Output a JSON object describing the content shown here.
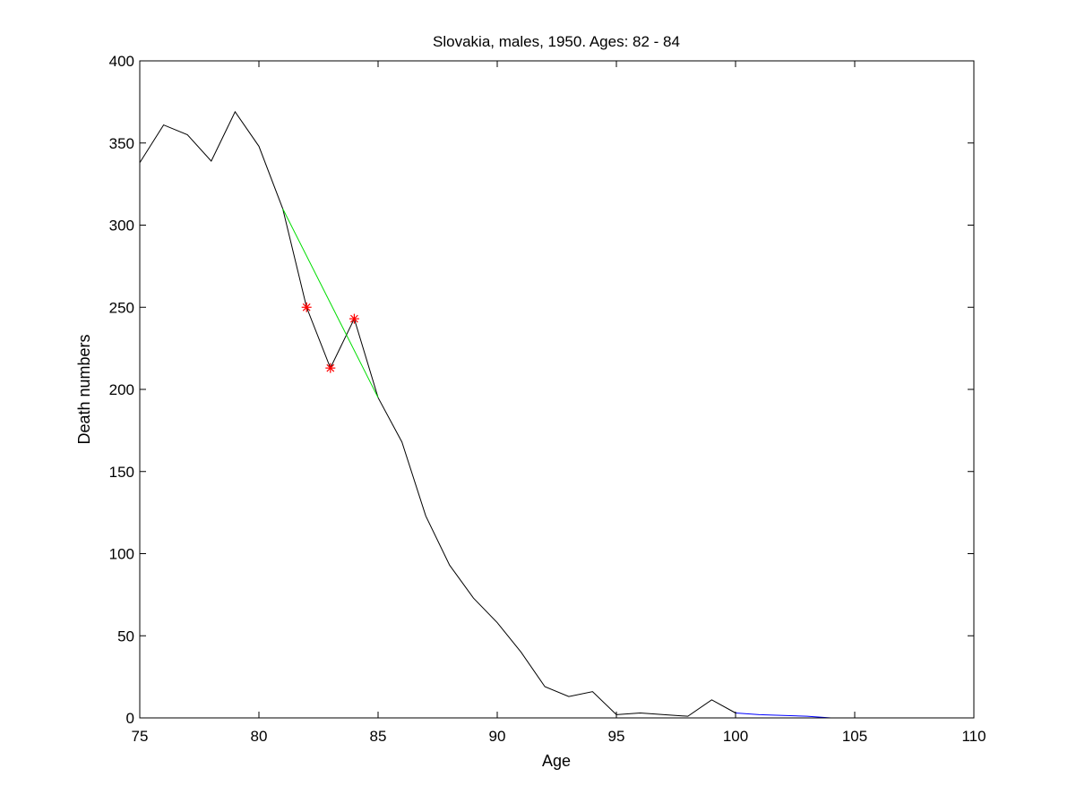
{
  "chart_data": {
    "type": "line",
    "title": "Slovakia, males, 1950. Ages: 82 - 84",
    "xlabel": "Age",
    "ylabel": "Death numbers",
    "xlim": [
      75,
      110
    ],
    "ylim": [
      0,
      400
    ],
    "xticks": [
      75,
      80,
      85,
      90,
      95,
      100,
      105,
      110
    ],
    "yticks": [
      0,
      50,
      100,
      150,
      200,
      250,
      300,
      350,
      400
    ],
    "grid": false,
    "legend": "none",
    "series": [
      {
        "color": "#000000",
        "style": "solid",
        "x": [
          75,
          76,
          77,
          78,
          79,
          80,
          81,
          82,
          83,
          84,
          85,
          86,
          87,
          88,
          89,
          90,
          91,
          92,
          93,
          94,
          95,
          96,
          97,
          98,
          99,
          100
        ],
        "y": [
          338,
          361,
          355,
          339,
          369,
          348,
          310,
          250,
          213,
          243,
          195,
          168,
          123,
          93,
          73,
          58,
          40,
          19,
          13,
          16,
          2,
          3,
          2,
          1,
          11,
          3
        ]
      },
      {
        "color": "#0000ff",
        "style": "solid",
        "x": [
          100,
          101,
          102,
          103,
          104
        ],
        "y": [
          3,
          2,
          1.5,
          1,
          0
        ]
      },
      {
        "color": "#00dd00",
        "style": "solid",
        "x": [
          81,
          85
        ],
        "y": [
          310,
          195
        ]
      },
      {
        "color": "#ff0000",
        "style": "markers",
        "marker": "asterisk",
        "x": [
          82,
          83,
          84
        ],
        "y": [
          250,
          213,
          243
        ]
      }
    ]
  }
}
